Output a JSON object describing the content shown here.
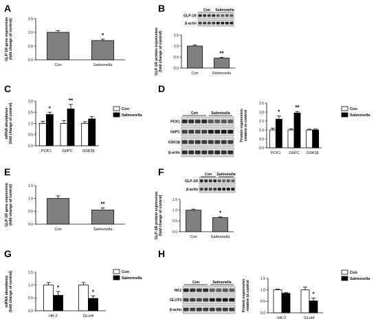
{
  "colors": {
    "gray_bar": "#808080",
    "white_bar": "#ffffff",
    "black_bar": "#000000"
  },
  "legend": {
    "con": "Con",
    "salmonella": "Salmonella"
  },
  "chart_data": [
    {
      "id": "A",
      "panel_label": "A",
      "type": "bar",
      "categories": [
        "Con",
        "Salmonella"
      ],
      "series": [
        {
          "values": [
            1.0,
            0.7
          ],
          "errors": [
            0.06,
            0.05
          ]
        }
      ],
      "stars": [
        "",
        "*"
      ],
      "ylabel": "GLP-1R gene expression (fold change of control)",
      "ylim": [
        0,
        1.5
      ],
      "yticks": [
        "0.0",
        "0.5",
        "1.0",
        "1.5"
      ]
    },
    {
      "id": "B",
      "panel_label": "B",
      "type": "bar",
      "categories": [
        "Con",
        "Salmonella"
      ],
      "series": [
        {
          "values": [
            1.0,
            0.45
          ],
          "errors": [
            0.05,
            0.04
          ]
        }
      ],
      "stars": [
        "",
        "**"
      ],
      "ylabel": "GLP-1R protein expression (fold change of control)",
      "ylim": [
        0,
        1.5
      ],
      "yticks": [
        "0.0",
        "0.5",
        "1.0",
        "1.5"
      ]
    },
    {
      "id": "C",
      "panel_label": "C",
      "type": "bar",
      "categories": [
        "PCK1",
        "G6PC",
        "GSK3β"
      ],
      "series": [
        {
          "name": "Con",
          "values": [
            1.0,
            1.0,
            1.0
          ],
          "errors": [
            0.1,
            0.12,
            0.08
          ]
        },
        {
          "name": "Salmonella",
          "values": [
            1.4,
            1.65,
            1.2
          ],
          "errors": [
            0.1,
            0.2,
            0.1
          ]
        }
      ],
      "stars": [
        "*",
        "**",
        ""
      ],
      "ylabel": "mRNA abundance (fold change of control)",
      "ylim": [
        0,
        2.0
      ],
      "yticks": [
        "0.0",
        "0.5",
        "1.0",
        "1.5",
        "2.0"
      ]
    },
    {
      "id": "D",
      "panel_label": "D",
      "type": "bar",
      "categories": [
        "PCK1",
        "G6PC",
        "GSK3β"
      ],
      "series": [
        {
          "name": "Con",
          "values": [
            1.0,
            1.0,
            1.0
          ],
          "errors": [
            0.1,
            0.06,
            0.04
          ]
        },
        {
          "name": "Salmonella",
          "values": [
            1.6,
            1.95,
            1.0
          ],
          "errors": [
            0.18,
            0.08,
            0.05
          ]
        }
      ],
      "stars": [
        "*",
        "**",
        ""
      ],
      "ylabel": "Protein expression relative to control",
      "ylim": [
        0,
        2.5
      ],
      "yticks": [
        "0.0",
        "0.5",
        "1.0",
        "1.5",
        "2.0",
        "2.5"
      ]
    },
    {
      "id": "E",
      "panel_label": "E",
      "type": "bar",
      "categories": [
        "Con",
        "Salmonella"
      ],
      "series": [
        {
          "values": [
            1.0,
            0.55
          ],
          "errors": [
            0.1,
            0.08
          ]
        }
      ],
      "stars": [
        "",
        "**"
      ],
      "ylabel": "GLP-1R gene expression (fold change of control)",
      "ylim": [
        0,
        1.5
      ],
      "yticks": [
        "0.0",
        "0.5",
        "1.0",
        "1.5"
      ]
    },
    {
      "id": "F",
      "panel_label": "F",
      "type": "bar",
      "categories": [
        "Con",
        "Salmonella"
      ],
      "series": [
        {
          "values": [
            1.0,
            0.65
          ],
          "errors": [
            0.05,
            0.04
          ]
        }
      ],
      "stars": [
        "",
        "*"
      ],
      "ylabel": "GLP-1R protein expression (fold change of control)",
      "ylim": [
        0,
        1.5
      ],
      "yticks": [
        "0.0",
        "0.5",
        "1.0",
        "1.5"
      ]
    },
    {
      "id": "G",
      "panel_label": "G",
      "type": "bar",
      "categories": [
        "HK-2",
        "GLut4"
      ],
      "series": [
        {
          "name": "Con",
          "values": [
            1.0,
            1.0
          ],
          "errors": [
            0.1,
            0.1
          ]
        },
        {
          "name": "Salmonella",
          "values": [
            0.6,
            0.48
          ],
          "errors": [
            0.15,
            0.1
          ]
        }
      ],
      "stars": [
        "*",
        "*"
      ],
      "ylabel": "mRNA abundance (fold change of control)",
      "ylim": [
        0,
        1.5
      ],
      "yticks": [
        "0.0",
        "0.5",
        "1.0",
        "1.5"
      ]
    },
    {
      "id": "H",
      "panel_label": "H",
      "type": "bar",
      "categories": [
        "HK-2",
        "GLut4"
      ],
      "series": [
        {
          "name": "Con",
          "values": [
            1.0,
            1.0
          ],
          "errors": [
            0.03,
            0.12
          ]
        },
        {
          "name": "Salmonella",
          "values": [
            0.85,
            0.52
          ],
          "errors": [
            0.03,
            0.12
          ]
        }
      ],
      "stars": [
        "",
        "*"
      ],
      "ylabel": "Protein expression relative to control",
      "ylim": [
        0,
        1.5
      ],
      "yticks": [
        "0.0",
        "0.5",
        "1.0",
        "1.5"
      ]
    }
  ],
  "blots": [
    {
      "id": "B",
      "group_labels": [
        "Con",
        "Salmonella"
      ],
      "rows": [
        "GLP-1R",
        "β-actin"
      ],
      "lanes": 8
    },
    {
      "id": "D",
      "group_labels": [
        "Con",
        "Salmonella"
      ],
      "rows": [
        "PCK1",
        "G6PC",
        "GSK3β",
        "β-actin"
      ],
      "lanes": 8
    },
    {
      "id": "F",
      "group_labels": [
        "Con",
        "Salmonella"
      ],
      "rows": [
        "GLP-1R",
        "β-actin"
      ],
      "lanes": 8
    },
    {
      "id": "H",
      "group_labels": [
        "Con",
        "Salmonella"
      ],
      "rows": [
        "HK2",
        "GLUT4",
        "β-actin"
      ],
      "lanes": 8
    }
  ]
}
